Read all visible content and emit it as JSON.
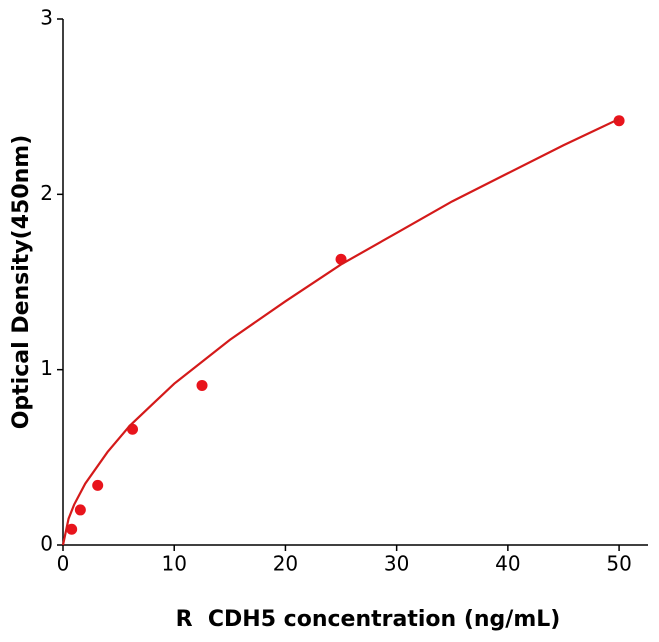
{
  "chart_data": {
    "type": "scatter",
    "x_label": "R  CDH5 concentration (ng/mL)",
    "y_label": "Optical Density(450nm)",
    "xlim": [
      0,
      52.6
    ],
    "ylim": [
      0,
      3
    ],
    "xticks": [
      0,
      10,
      20,
      30,
      40,
      50
    ],
    "yticks": [
      0,
      1,
      2,
      3
    ],
    "grid": false,
    "series": [
      {
        "color": "#e8141c",
        "x": [
          0.78,
          1.56,
          3.12,
          6.25,
          12.5,
          25,
          50
        ],
        "values": [
          0.09,
          0.2,
          0.34,
          0.66,
          0.91,
          1.63,
          2.42
        ]
      },
      {
        "type": "line",
        "color": "#d41a1a",
        "x": [
          0,
          0.5,
          1,
          2,
          4,
          6,
          8,
          10,
          15,
          20,
          25,
          30,
          35,
          40,
          45,
          50
        ],
        "values": [
          0,
          0.15,
          0.23,
          0.35,
          0.53,
          0.68,
          0.8,
          0.92,
          1.17,
          1.39,
          1.6,
          1.78,
          1.96,
          2.12,
          2.28,
          2.43
        ]
      }
    ]
  }
}
